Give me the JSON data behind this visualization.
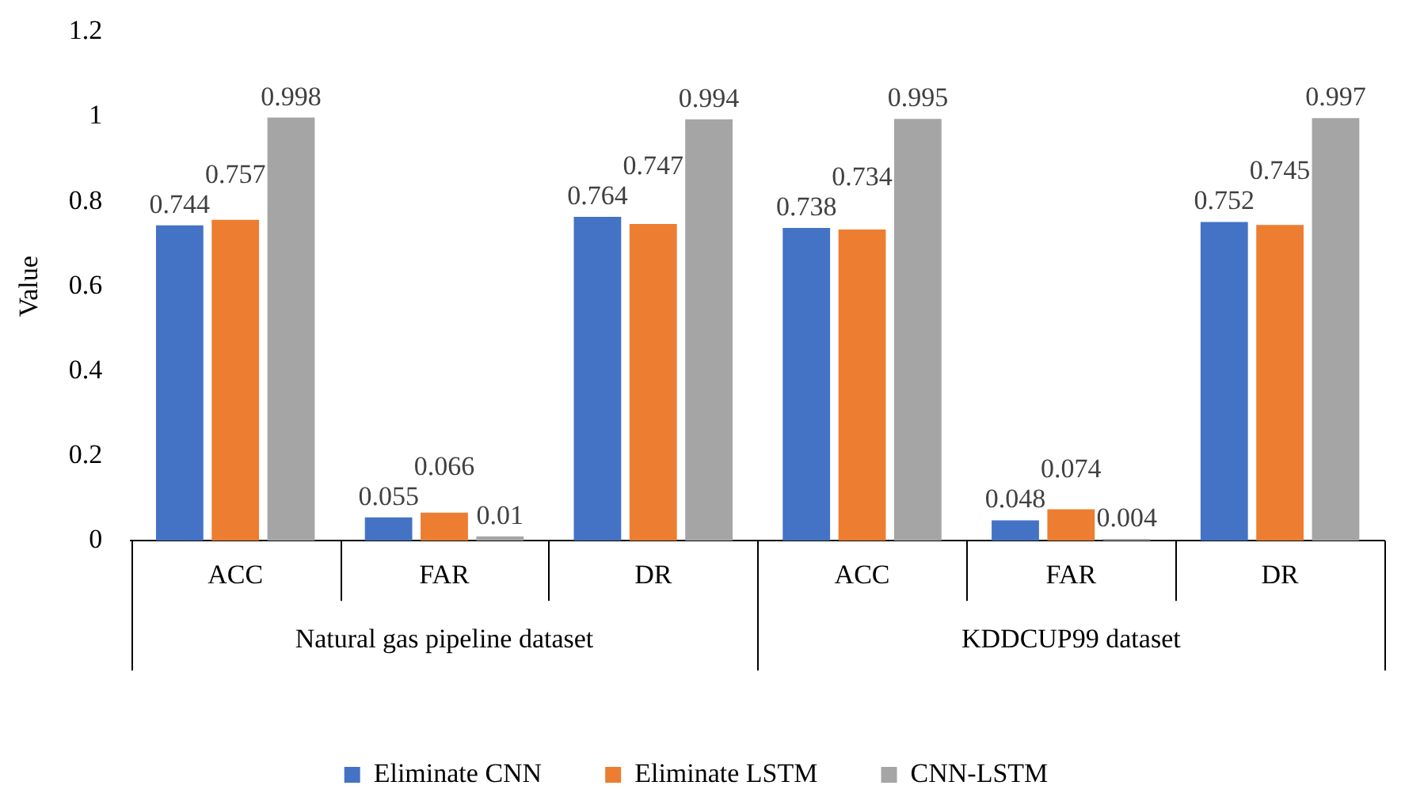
{
  "chart_data": {
    "type": "bar",
    "ylabel": "Value",
    "categories": [
      "ACC",
      "FAR",
      "DR",
      "ACC",
      "FAR",
      "DR"
    ],
    "series": [
      {
        "name": "Eliminate CNN",
        "color": "#4472c4",
        "values": [
          0.744,
          0.055,
          0.764,
          0.738,
          0.048,
          0.752
        ]
      },
      {
        "name": "Eliminate LSTM",
        "color": "#ed7d31",
        "values": [
          0.757,
          0.066,
          0.747,
          0.734,
          0.074,
          0.745
        ]
      },
      {
        "name": "CNN-LSTM",
        "color": "#a5a5a5",
        "values": [
          0.998,
          0.01,
          0.994,
          0.995,
          0.004,
          0.997
        ]
      }
    ],
    "ylim": [
      0,
      1.2
    ],
    "yticks": [
      0,
      0.2,
      0.4,
      0.6,
      0.8,
      1,
      1.2
    ],
    "annotations": [
      "Natural gas pipeline dataset",
      "KDDCUP99 dataset"
    ],
    "data_labels": true,
    "legend": "bottom",
    "grid": false
  }
}
